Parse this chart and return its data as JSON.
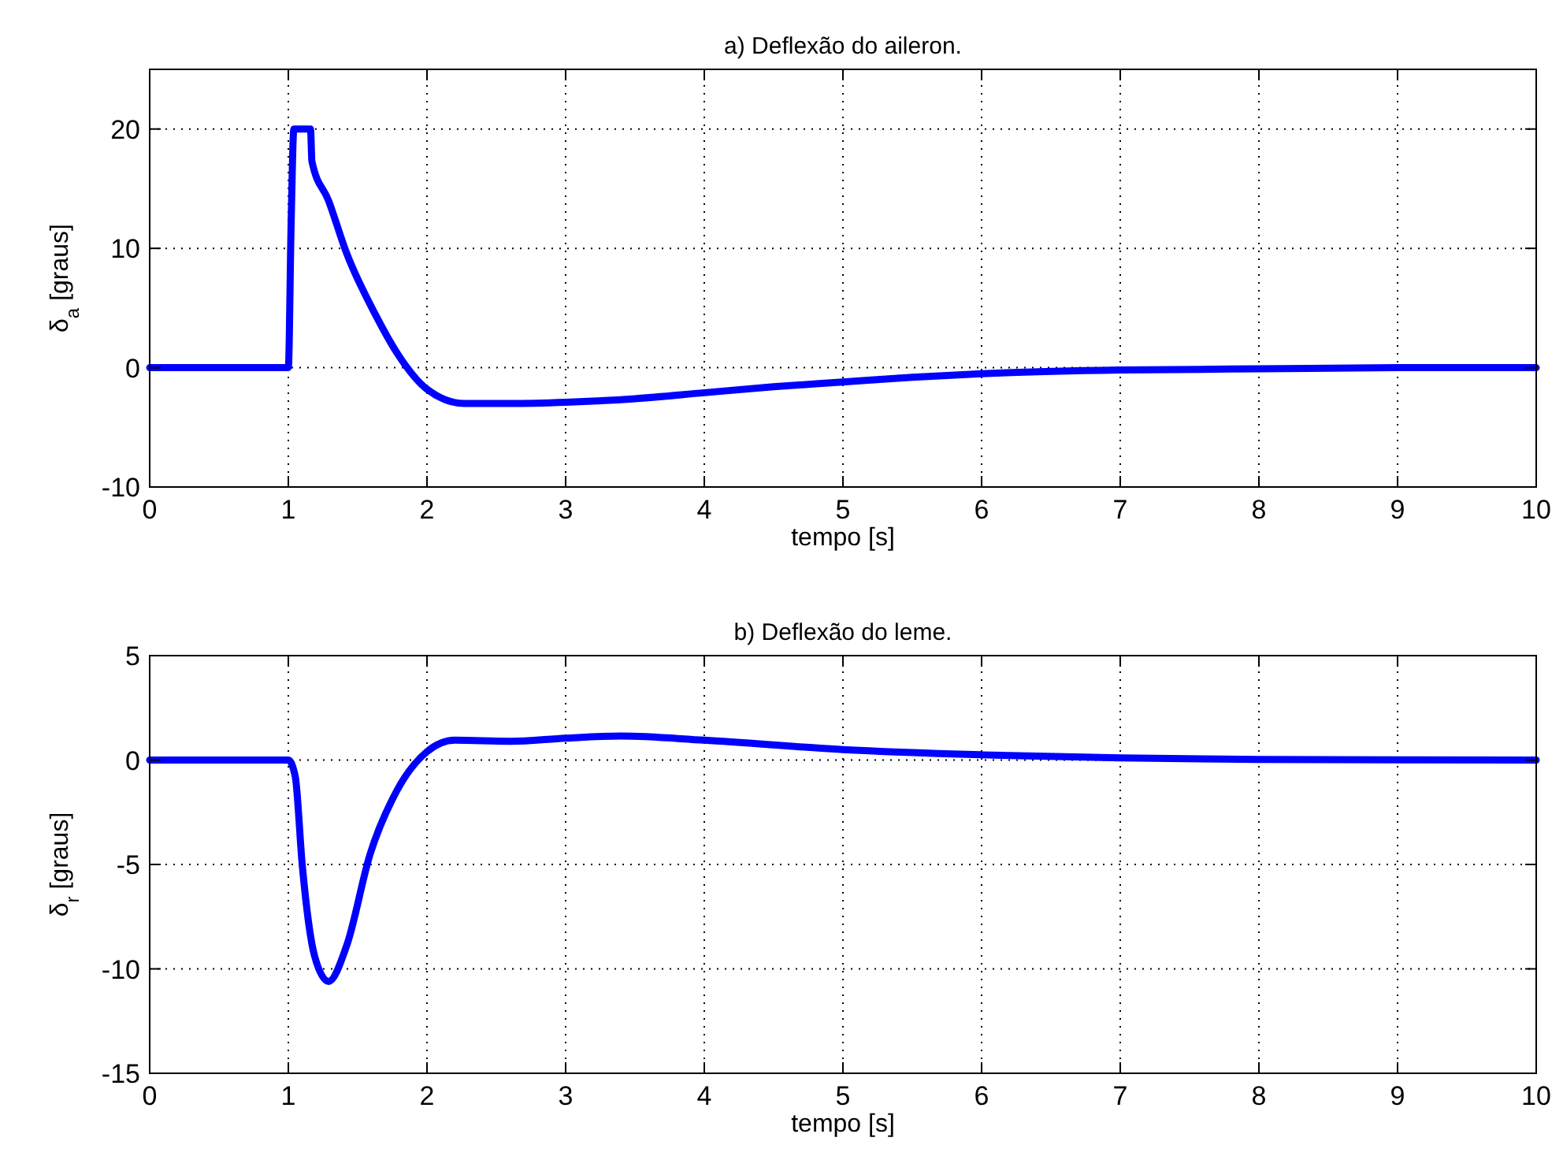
{
  "chart_data": [
    {
      "type": "line",
      "title": "a) Deflexão do aileron.",
      "xlabel": "tempo [s]",
      "ylabel": "δ$_{a}$ [graus]",
      "xlim": [
        0,
        10
      ],
      "xticks": [
        0,
        1,
        2,
        3,
        4,
        5,
        6,
        7,
        8,
        9,
        10
      ],
      "ylim": [
        -10,
        25
      ],
      "yticks": [
        -10,
        0,
        10,
        20
      ],
      "grid": true,
      "line_style": "solid",
      "series": [
        {
          "color": "#0000ff",
          "x": [
            0,
            1.0,
            1.02,
            1.04,
            1.16,
            1.17,
            1.29,
            1.42,
            1.63,
            1.78,
            2.0,
            2.27,
            2.6,
            3.0,
            3.5,
            4.0,
            4.5,
            5.0,
            5.5,
            6.0,
            7.0,
            8.0,
            9.0,
            10
          ],
          "values": [
            0,
            0,
            12,
            20,
            20,
            17.3,
            14.0,
            9.6,
            4.4,
            1.3,
            -1.8,
            -3.0,
            -3.0,
            -2.9,
            -2.6,
            -2.1,
            -1.6,
            -1.2,
            -0.8,
            -0.5,
            -0.2,
            -0.1,
            0,
            0
          ]
        }
      ]
    },
    {
      "type": "line",
      "title": "b) Deflexão do leme.",
      "xlabel": "tempo [s]",
      "ylabel": "δ$_{r}$ [graus]",
      "xlim": [
        0,
        10
      ],
      "xticks": [
        0,
        1,
        2,
        3,
        4,
        5,
        6,
        7,
        8,
        9,
        10
      ],
      "ylim": [
        -15,
        5
      ],
      "yticks": [
        -15,
        -10,
        -5,
        0,
        5
      ],
      "grid": true,
      "line_style": "solid",
      "series": [
        {
          "color": "#0000ff",
          "x": [
            0,
            1.0,
            1.05,
            1.1,
            1.19,
            1.29,
            1.42,
            1.59,
            1.78,
            2.0,
            2.2,
            2.6,
            3.0,
            3.4,
            4.0,
            5.0,
            6.0,
            7.0,
            8.0,
            10
          ],
          "values": [
            0,
            0,
            -0.8,
            -5,
            -9.4,
            -10.6,
            -8.9,
            -4.5,
            -1.5,
            0.4,
            0.95,
            0.9,
            1.05,
            1.15,
            0.95,
            0.5,
            0.25,
            0.1,
            0.03,
            0
          ]
        }
      ]
    }
  ]
}
